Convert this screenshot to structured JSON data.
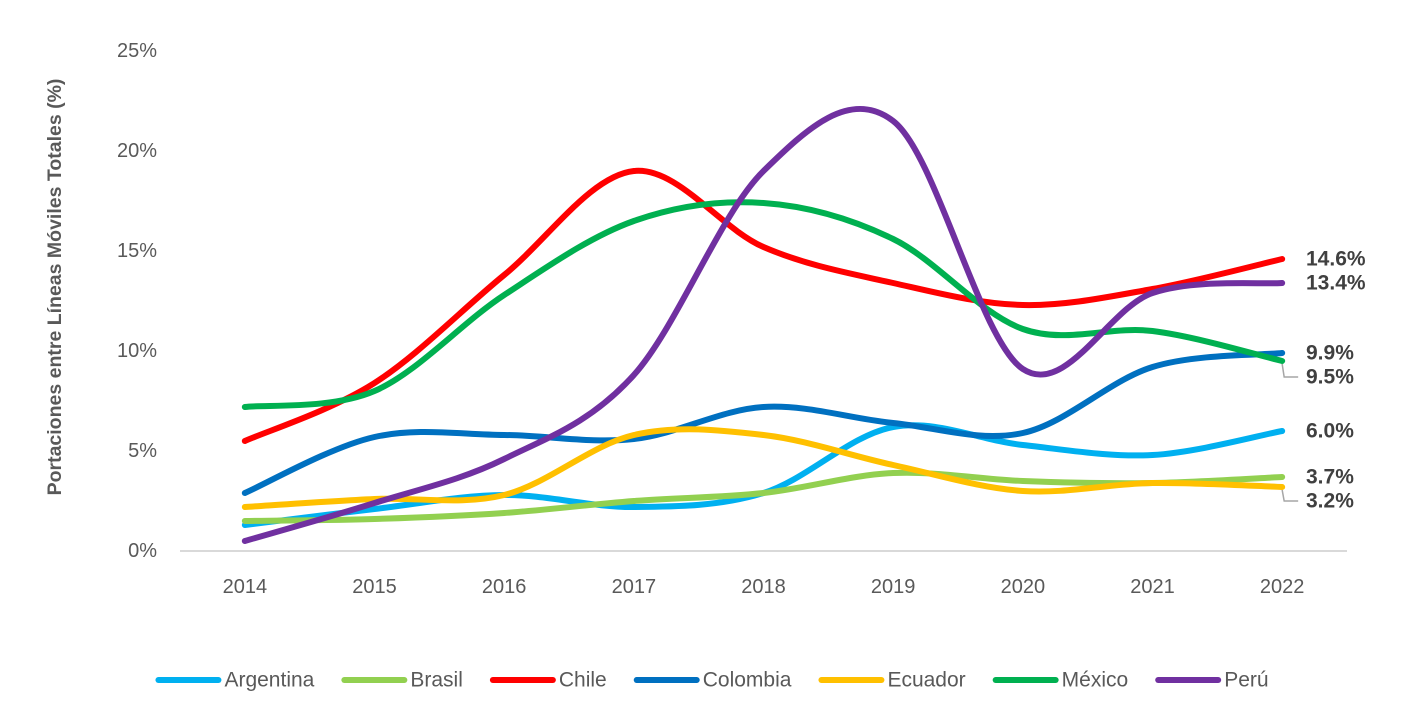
{
  "chart_data": {
    "type": "line",
    "title": "",
    "xlabel": "",
    "ylabel": "Portaciones entre Líneas Móviles Totales (%)",
    "categories": [
      "2014",
      "2015",
      "2016",
      "2017",
      "2018",
      "2019",
      "2020",
      "2021",
      "2022"
    ],
    "ylim": [
      0,
      25
    ],
    "yticks": [
      0,
      5,
      10,
      15,
      20,
      25
    ],
    "ytick_labels": [
      "0%",
      "5%",
      "10%",
      "15%",
      "20%",
      "25%"
    ],
    "grid": false,
    "smooth": true,
    "legend_position": "bottom",
    "series": [
      {
        "name": "Argentina",
        "color": "#00B0F0",
        "values": [
          1.3,
          2.1,
          2.8,
          2.2,
          2.9,
          6.2,
          5.3,
          4.8,
          6.0
        ],
        "end_label": "6.0%"
      },
      {
        "name": "Brasil",
        "color": "#92D050",
        "values": [
          1.5,
          1.6,
          1.9,
          2.5,
          2.9,
          3.9,
          3.5,
          3.4,
          3.7
        ],
        "end_label": "3.7%"
      },
      {
        "name": "Chile",
        "color": "#FF0000",
        "values": [
          5.5,
          8.4,
          13.8,
          19.0,
          15.2,
          13.4,
          12.3,
          13.1,
          14.6
        ],
        "end_label": "14.6%"
      },
      {
        "name": "Colombia",
        "color": "#0070C0",
        "values": [
          2.9,
          5.7,
          5.8,
          5.6,
          7.2,
          6.4,
          5.9,
          9.2,
          9.9
        ],
        "end_label": "9.9%"
      },
      {
        "name": "Ecuador",
        "color": "#FFC000",
        "values": [
          2.2,
          2.6,
          2.8,
          5.8,
          5.8,
          4.3,
          3.0,
          3.4,
          3.2
        ],
        "end_label": "3.2%"
      },
      {
        "name": "México",
        "color": "#00B050",
        "values": [
          7.2,
          8.0,
          12.8,
          16.5,
          17.4,
          15.6,
          11.1,
          11.0,
          9.5
        ],
        "end_label": "9.5%"
      },
      {
        "name": "Perú",
        "color": "#7030A0",
        "values": [
          0.5,
          2.4,
          4.6,
          8.8,
          19.0,
          21.5,
          9.1,
          12.9,
          13.4
        ],
        "end_label": "13.4%"
      }
    ]
  }
}
